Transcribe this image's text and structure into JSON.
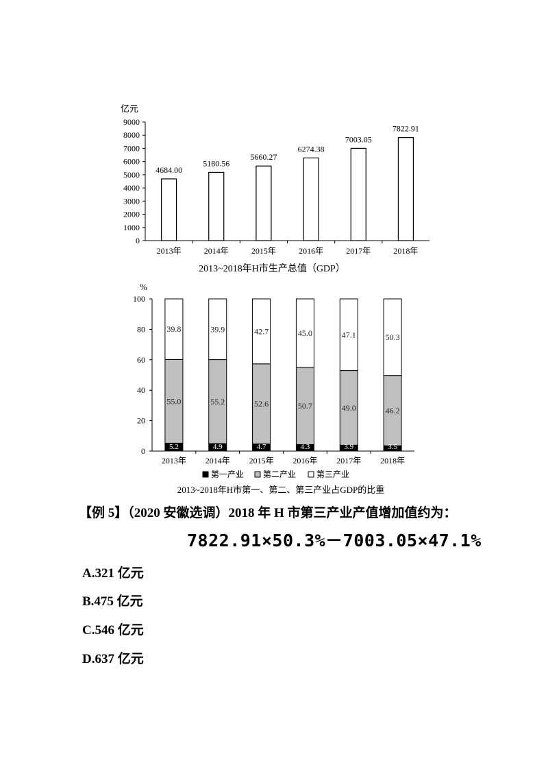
{
  "chart_data": [
    {
      "type": "bar",
      "ylabel": "亿元",
      "title": "2013~2018年H市生产总值（GDP）",
      "categories": [
        "2013年",
        "2014年",
        "2015年",
        "2016年",
        "2017年",
        "2018年"
      ],
      "values": [
        4684.0,
        5180.56,
        5660.27,
        6274.38,
        7003.05,
        7822.91
      ],
      "value_labels": [
        "4684.00",
        "5180.56",
        "5660.27",
        "6274.38",
        "7003.05",
        "7822.91"
      ],
      "ylim": [
        0,
        9000
      ],
      "yticks": [
        "0",
        "1000",
        "2000",
        "3000",
        "4000",
        "5000",
        "6000",
        "7000",
        "8000",
        "9000"
      ],
      "grid": false
    },
    {
      "type": "bar",
      "stacked": true,
      "ylabel": "%",
      "title": "2013~2018年H市第一、第二、第三产业占GDP的比重",
      "categories": [
        "2013年",
        "2014年",
        "2015年",
        "2016年",
        "2017年",
        "2018年"
      ],
      "series": [
        {
          "name": "第一产业",
          "values": [
            5.2,
            4.9,
            4.7,
            4.3,
            3.9,
            3.5
          ],
          "labels": [
            "5.2",
            "4.9",
            "4.7",
            "4.3",
            "3.9",
            "3.5"
          ],
          "color": "#000000"
        },
        {
          "name": "第二产业",
          "values": [
            55.0,
            55.2,
            52.6,
            50.7,
            49.0,
            46.2
          ],
          "labels": [
            "55.0",
            "55.2",
            "52.6",
            "50.7",
            "49.0",
            "46.2"
          ],
          "color": "#bfbfbf"
        },
        {
          "name": "第三产业",
          "values": [
            39.8,
            39.9,
            42.7,
            45.0,
            47.1,
            50.3
          ],
          "labels": [
            "39.8",
            "39.9",
            "42.7",
            "45.0",
            "47.1",
            "50.3"
          ],
          "color": "#ffffff"
        }
      ],
      "ylim": [
        0,
        100
      ],
      "yticks": [
        "0",
        "20",
        "40",
        "60",
        "80",
        "100"
      ],
      "legend": "bottom",
      "grid": false
    }
  ],
  "question": {
    "text": "【例 5】（2020 安徽选调）2018 年 H 市第三产业产值增加值约为：",
    "formula": "7822.91×50.3%－7003.05×47.1%"
  },
  "options": {
    "a": "A.321 亿元",
    "b": "B.475 亿元",
    "c": "C.546 亿元",
    "d": "D.637 亿元"
  }
}
